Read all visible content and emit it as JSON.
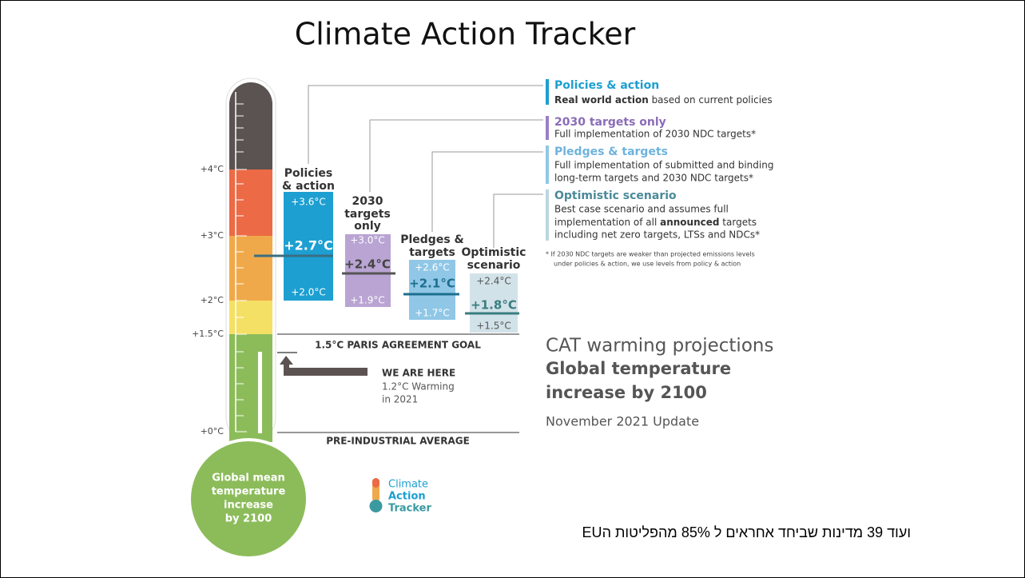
{
  "title": "Climate Action Tracker",
  "thermometer": {
    "scale": [
      "+4°C",
      "+3°C",
      "+2°C",
      "+1.5°C",
      "+0°C"
    ],
    "bulb": [
      "Global mean",
      "temperature",
      "increase",
      "by 2100"
    ]
  },
  "scenarios": [
    {
      "heading": [
        "Policies",
        "& action"
      ],
      "high": "+3.6°C",
      "mid": "+2.7°C",
      "low": "+2.0°C"
    },
    {
      "heading": [
        "2030",
        "targets",
        "only"
      ],
      "high": "+3.0°C",
      "mid": "+2.4°C",
      "low": "+1.9°C"
    },
    {
      "heading": [
        "Pledges &",
        "targets"
      ],
      "high": "+2.6°C",
      "mid": "+2.1°C",
      "low": "+1.7°C"
    },
    {
      "heading": [
        "Optimistic",
        "scenario"
      ],
      "high": "+2.4°C",
      "mid": "+1.8°C",
      "low": "+1.5°C"
    }
  ],
  "legend": [
    {
      "title": "Policies & action",
      "lines": [
        [
          "Real world action",
          " based on current policies"
        ]
      ]
    },
    {
      "title": "2030 targets only",
      "lines": [
        [
          "Full implementation of 2030 NDC targets*"
        ]
      ]
    },
    {
      "title": "Pledges & targets",
      "lines": [
        [
          "Full implementation of submitted and binding"
        ],
        [
          "long-term targets and 2030 NDC targets*"
        ]
      ]
    },
    {
      "title": "Optimistic scenario",
      "lines": [
        [
          "Best case scenario and assumes full"
        ],
        [
          "implementation of all ",
          "announced",
          " targets"
        ],
        [
          "including net zero targets, LTSs and NDCs*"
        ]
      ]
    }
  ],
  "footnote": [
    "*  If 2030 NDC targets are weaker than projected emissions levels",
    "under policies & action, we use levels from policy & action"
  ],
  "paris": "1.5°C PARIS AGREEMENT GOAL",
  "here": {
    "title": "WE ARE HERE",
    "lines": [
      "1.2°C Warming",
      "in 2021"
    ]
  },
  "preindustrial": "PRE-INDUSTRIAL AVERAGE",
  "projections": {
    "kicker": "CAT warming projections",
    "title": [
      "Global temperature",
      "increase by 2100"
    ],
    "update": "November 2021 Update"
  },
  "logo": [
    "Climate",
    "Action",
    "Tracker"
  ],
  "caption": "ועוד 39 מדינות שביחד אחראים ל 85% מהפליטות הEU"
}
